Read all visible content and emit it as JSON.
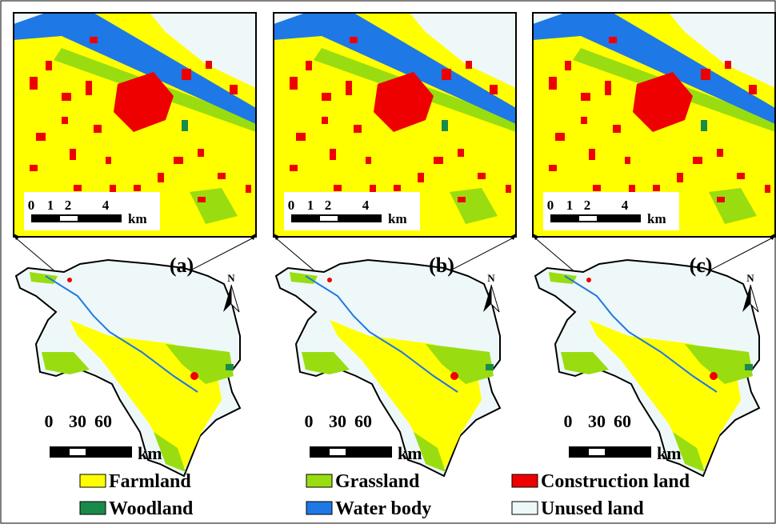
{
  "panels": [
    {
      "label": "(a)",
      "inset_scale": {
        "ticks": [
          0,
          1,
          2,
          4
        ],
        "unit": "km"
      },
      "map_scale": {
        "ticks": [
          0,
          30,
          60
        ],
        "unit": "km"
      },
      "north": "N"
    },
    {
      "label": "(b)",
      "inset_scale": {
        "ticks": [
          0,
          1,
          2,
          4
        ],
        "unit": "km"
      },
      "map_scale": {
        "ticks": [
          0,
          30,
          60
        ],
        "unit": "km"
      },
      "north": "N"
    },
    {
      "label": "(c)",
      "inset_scale": {
        "ticks": [
          0,
          1,
          2,
          4
        ],
        "unit": "km"
      },
      "map_scale": {
        "ticks": [
          0,
          30,
          60
        ],
        "unit": "km"
      },
      "north": "N"
    }
  ],
  "legend": [
    {
      "name": "Farmland",
      "color": "#ffff00"
    },
    {
      "name": "Grassland",
      "color": "#99dd11"
    },
    {
      "name": "Construction land",
      "color": "#ee0000"
    },
    {
      "name": "Woodland",
      "color": "#1a8a4a"
    },
    {
      "name": "Water body",
      "color": "#1e78e6"
    },
    {
      "name": "Unused land",
      "color": "#eef8f8"
    }
  ]
}
